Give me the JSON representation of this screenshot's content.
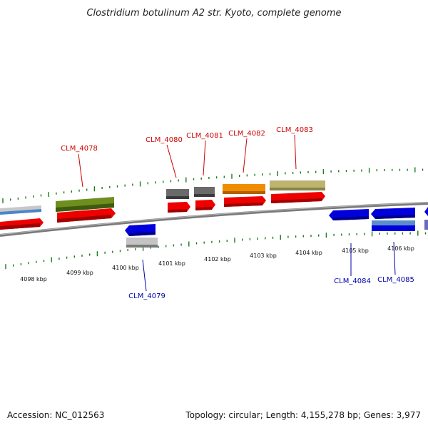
{
  "title": "Clostridium botulinum A2 str. Kyoto, complete genome",
  "footer": {
    "accession": "Accession: NC_012563",
    "summary": "Topology: circular; Length: 4,155,278 bp; Genes: 3,977"
  },
  "colors": {
    "backbone": "#7f7f7f",
    "tick": "#1a7a1a",
    "forward_label": "#cc0000",
    "reverse_label": "#0000aa",
    "forward_cds": "#ee0000",
    "reverse_cds": "#0000dd"
  },
  "scale": {
    "unit": "kbp",
    "labels": [
      "4098 kbp",
      "4099 kbp",
      "4100 kbp",
      "4101 kbp",
      "4102 kbp",
      "4103 kbp",
      "4104 kbp",
      "4105 kbp",
      "4106 kbp"
    ]
  },
  "gene_labels": [
    {
      "text": "CLM_4078",
      "strand": "forward"
    },
    {
      "text": "CLM_4080",
      "strand": "forward"
    },
    {
      "text": "CLM_4081",
      "strand": "forward"
    },
    {
      "text": "CLM_4082",
      "strand": "forward"
    },
    {
      "text": "CLM_4083",
      "strand": "forward"
    },
    {
      "text": "CLM_4079",
      "strand": "reverse"
    },
    {
      "text": "CLM_4084",
      "strand": "reverse"
    },
    {
      "text": "CLM_4085",
      "strand": "reverse"
    }
  ]
}
